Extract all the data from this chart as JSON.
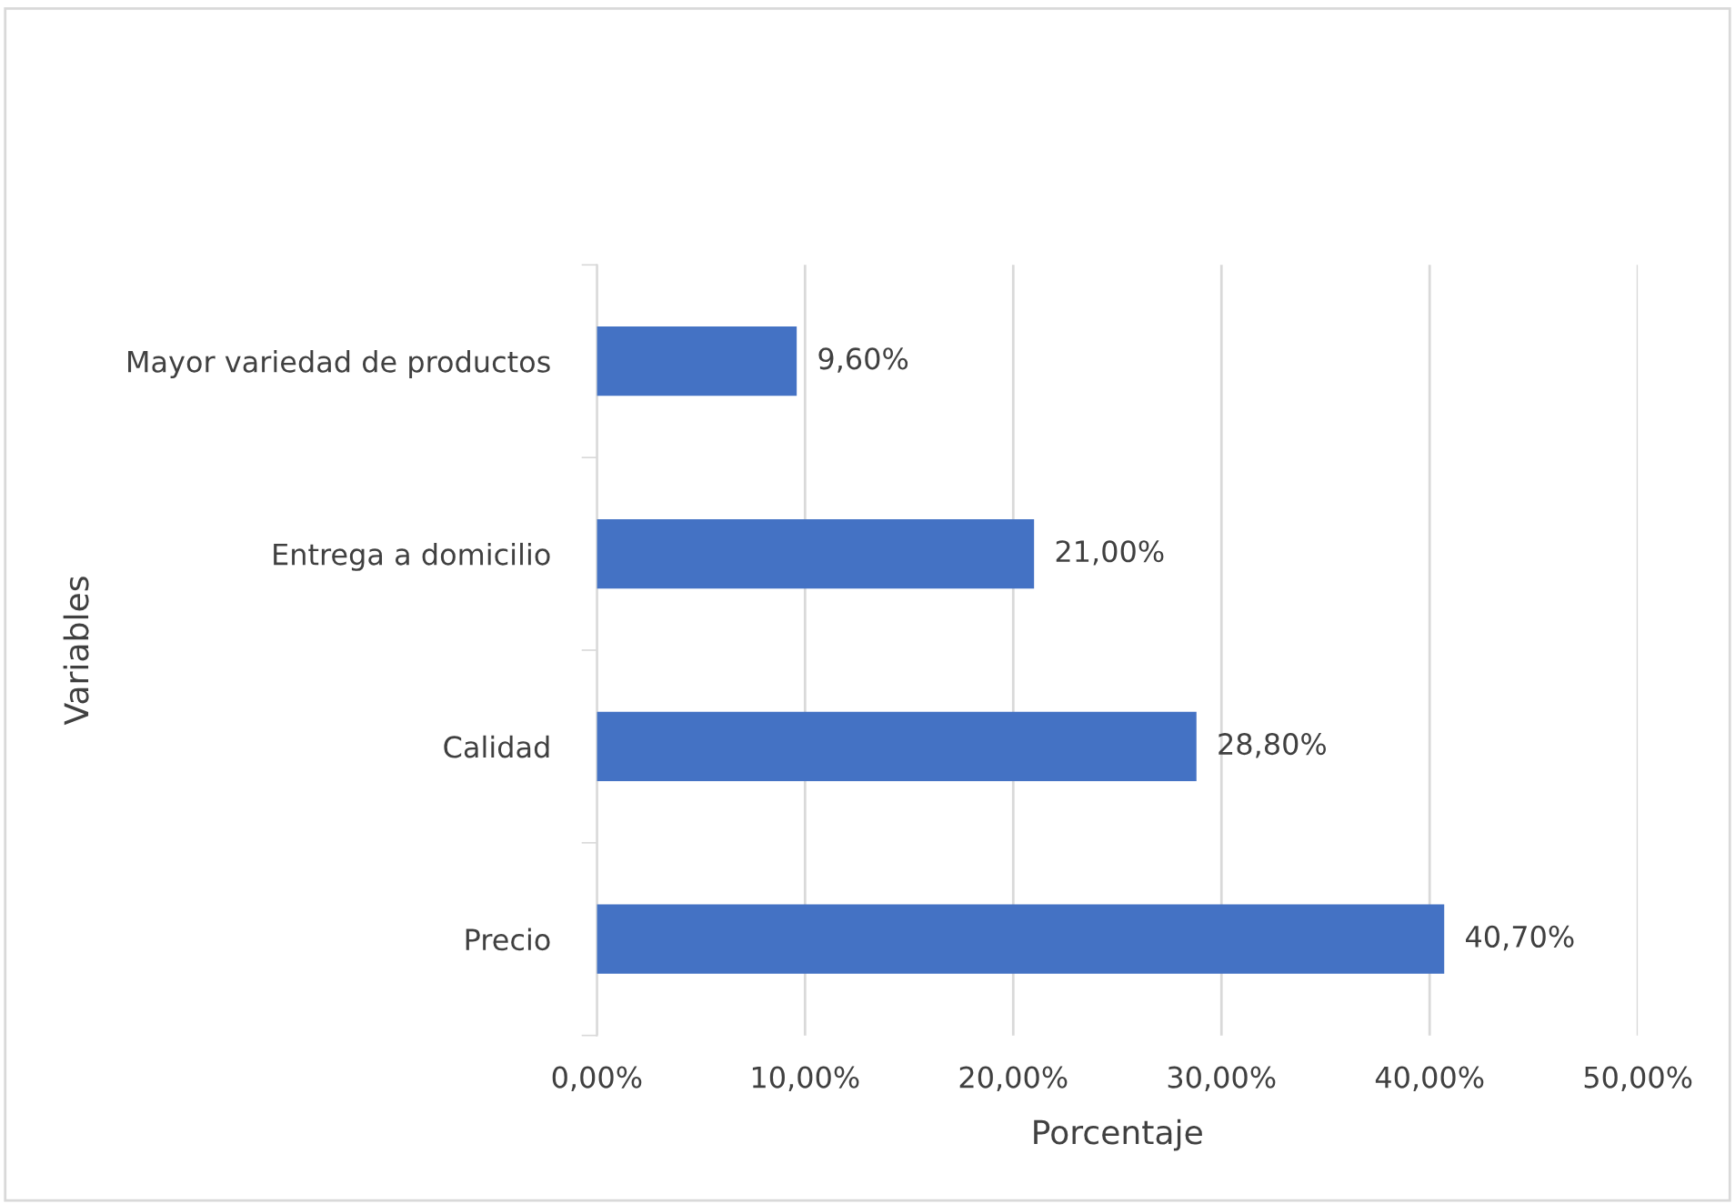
{
  "chart_data": {
    "type": "bar",
    "orientation": "horizontal",
    "categories": [
      "Mayor variedad de productos",
      "Entrega a domicilio",
      "Calidad",
      "Precio"
    ],
    "values": [
      9.6,
      21.0,
      28.8,
      40.7
    ],
    "value_labels": [
      "9,60%",
      "21,00%",
      "28,80%",
      "40,70%"
    ],
    "color": "#4472c4",
    "xlim": [
      0,
      50
    ],
    "xticks": [
      {
        "value": 0,
        "label": "0,00%"
      },
      {
        "value": 10,
        "label": "10,00%"
      },
      {
        "value": 20,
        "label": "20,00%"
      },
      {
        "value": 30,
        "label": "30,00%"
      },
      {
        "value": 40,
        "label": "40,00%"
      },
      {
        "value": 50,
        "label": "50,00%"
      }
    ],
    "xlabel": "Porcentaje",
    "ylabel": "Variables",
    "grid": "x"
  }
}
